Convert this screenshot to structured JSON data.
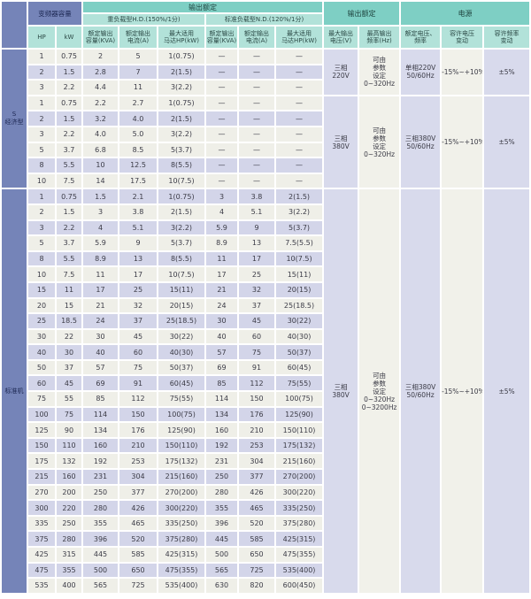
{
  "colors": {
    "slate_blue": "#7584b8",
    "slate_text": "#1c2752",
    "group_header_teal": "#7ecfc4",
    "sub_header_teal": "#b2e2d9",
    "row_light": "#efefe8",
    "row_dark": "#d3d5e9",
    "merged_lavender": "#d8daec",
    "merged_cream": "#f1f1ea",
    "border_white": "#ffffff",
    "data_text": "#3b3b46"
  },
  "header": {
    "inverter_capacity": "变频器容量",
    "output_rating": "输出额定",
    "heavy_duty": "重负载型H.D.(150%/1分)",
    "normal_duty": "标准负载型N.D.(120%/1分)",
    "output_rating_right": "输出额定",
    "power": "电源",
    "columns": [
      "HP",
      "kW",
      "额定输出\n容量(KVA)",
      "额定输出\n电流(A)",
      "最大适用\n马达HP(kW)",
      "额定输出\n容量(KVA)",
      "额定输出\n电流(A)",
      "最大适用\n马达HP(kW)",
      "最大输出\n电压(V)",
      "最高输出\n频率(Hz)",
      "额定电压、\n频率",
      "容许电压\n变动",
      "容许频率\n变动"
    ]
  },
  "sections": [
    {
      "label": "S\n经济型",
      "stripe": "mod3",
      "groups": [
        {
          "merged": {
            "max_output_voltage": "三相\n220V",
            "max_output_frequency": "可由\n参数\n设定\n0~320Hz",
            "rated_voltage_frequency": "单相220V\n50/60Hz",
            "voltage_fluctuation": "-15%~+10%",
            "frequency_fluctuation": "±5%"
          },
          "rows": [
            [
              "1",
              "0.75",
              "2",
              "5",
              "1(0.75)",
              "—",
              "—",
              "—"
            ],
            [
              "2",
              "1.5",
              "2.8",
              "7",
              "2(1.5)",
              "—",
              "—",
              "—"
            ],
            [
              "3",
              "2.2",
              "4.4",
              "11",
              "3(2.2)",
              "—",
              "—",
              "—"
            ]
          ]
        },
        {
          "merged": {
            "max_output_voltage": "三相\n380V",
            "max_output_frequency": "可由\n参数\n设定\n0~320Hz",
            "rated_voltage_frequency": "三相380V\n50/60Hz",
            "voltage_fluctuation": "-15%~+10%",
            "frequency_fluctuation": "±5%"
          },
          "rows": [
            [
              "1",
              "0.75",
              "2.2",
              "2.7",
              "1(0.75)",
              "—",
              "—",
              "—"
            ],
            [
              "2",
              "1.5",
              "3.2",
              "4.0",
              "2(1.5)",
              "—",
              "—",
              "—"
            ],
            [
              "3",
              "2.2",
              "4.0",
              "5.0",
              "3(2.2)",
              "—",
              "—",
              "—"
            ],
            [
              "5",
              "3.7",
              "6.8",
              "8.5",
              "5(3.7)",
              "—",
              "—",
              "—"
            ],
            [
              "8",
              "5.5",
              "10",
              "12.5",
              "8(5.5)",
              "—",
              "—",
              "—"
            ],
            [
              "10",
              "7.5",
              "14",
              "17.5",
              "10(7.5)",
              "—",
              "—",
              "—"
            ]
          ]
        }
      ]
    },
    {
      "label": "标准机",
      "stripe": "mod2",
      "groups": [
        {
          "merged": {
            "max_output_voltage": "三相\n380V",
            "max_output_frequency": "可由\n参数\n设定\n0~320Hz\n0~3200Hz",
            "rated_voltage_frequency": "三相380V\n50/60Hz",
            "voltage_fluctuation": "-15%~+10%",
            "frequency_fluctuation": "±5%"
          },
          "rows": [
            [
              "1",
              "0.75",
              "1.5",
              "2.1",
              "1(0.75)",
              "3",
              "3.8",
              "2(1.5)"
            ],
            [
              "2",
              "1.5",
              "3",
              "3.8",
              "2(1.5)",
              "4",
              "5.1",
              "3(2.2)"
            ],
            [
              "3",
              "2.2",
              "4",
              "5.1",
              "3(2.2)",
              "5.9",
              "9",
              "5(3.7)"
            ],
            [
              "5",
              "3.7",
              "5.9",
              "9",
              "5(3.7)",
              "8.9",
              "13",
              "7.5(5.5)"
            ],
            [
              "8",
              "5.5",
              "8.9",
              "13",
              "8(5.5)",
              "11",
              "17",
              "10(7.5)"
            ],
            [
              "10",
              "7.5",
              "11",
              "17",
              "10(7.5)",
              "17",
              "25",
              "15(11)"
            ],
            [
              "15",
              "11",
              "17",
              "25",
              "15(11)",
              "21",
              "32",
              "20(15)"
            ],
            [
              "20",
              "15",
              "21",
              "32",
              "20(15)",
              "24",
              "37",
              "25(18.5)"
            ],
            [
              "25",
              "18.5",
              "24",
              "37",
              "25(18.5)",
              "30",
              "45",
              "30(22)"
            ],
            [
              "30",
              "22",
              "30",
              "45",
              "30(22)",
              "40",
              "60",
              "40(30)"
            ],
            [
              "40",
              "30",
              "40",
              "60",
              "40(30)",
              "57",
              "75",
              "50(37)"
            ],
            [
              "50",
              "37",
              "57",
              "75",
              "50(37)",
              "69",
              "91",
              "60(45)"
            ],
            [
              "60",
              "45",
              "69",
              "91",
              "60(45)",
              "85",
              "112",
              "75(55)"
            ],
            [
              "75",
              "55",
              "85",
              "112",
              "75(55)",
              "114",
              "150",
              "100(75)"
            ],
            [
              "100",
              "75",
              "114",
              "150",
              "100(75)",
              "134",
              "176",
              "125(90)"
            ],
            [
              "125",
              "90",
              "134",
              "176",
              "125(90)",
              "160",
              "210",
              "150(110)"
            ],
            [
              "150",
              "110",
              "160",
              "210",
              "150(110)",
              "192",
              "253",
              "175(132)"
            ],
            [
              "175",
              "132",
              "192",
              "253",
              "175(132)",
              "231",
              "304",
              "215(160)"
            ],
            [
              "215",
              "160",
              "231",
              "304",
              "215(160)",
              "250",
              "377",
              "270(200)"
            ],
            [
              "270",
              "200",
              "250",
              "377",
              "270(200)",
              "280",
              "426",
              "300(220)"
            ],
            [
              "300",
              "220",
              "280",
              "426",
              "300(220)",
              "355",
              "465",
              "335(250)"
            ],
            [
              "335",
              "250",
              "355",
              "465",
              "335(250)",
              "396",
              "520",
              "375(280)"
            ],
            [
              "375",
              "280",
              "396",
              "520",
              "375(280)",
              "445",
              "585",
              "425(315)"
            ],
            [
              "425",
              "315",
              "445",
              "585",
              "425(315)",
              "500",
              "650",
              "475(355)"
            ],
            [
              "475",
              "355",
              "500",
              "650",
              "475(355)",
              "565",
              "725",
              "535(400)"
            ],
            [
              "535",
              "400",
              "565",
              "725",
              "535(400)",
              "630",
              "820",
              "600(450)"
            ]
          ]
        }
      ]
    }
  ]
}
